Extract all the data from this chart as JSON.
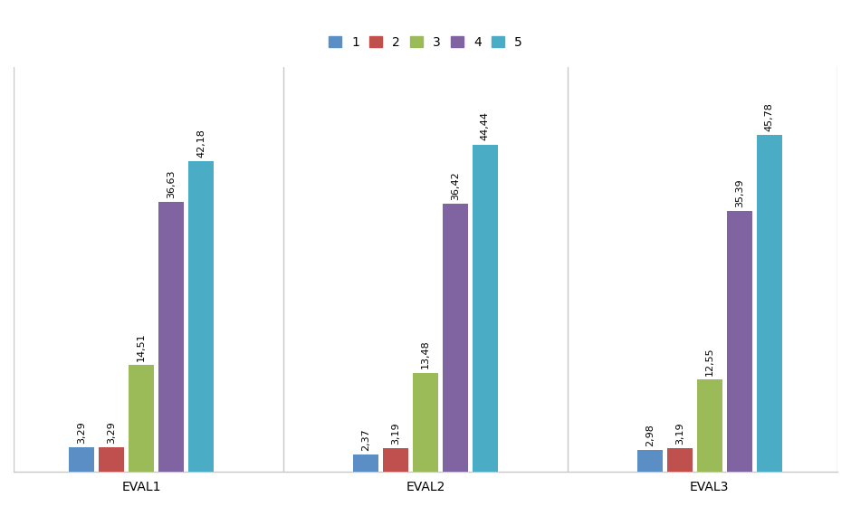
{
  "groups": [
    "EVAL1",
    "EVAL2",
    "EVAL3"
  ],
  "series_labels": [
    "1",
    "2",
    "3",
    "4",
    "5"
  ],
  "values": [
    [
      3.29,
      3.29,
      14.51,
      36.63,
      42.18
    ],
    [
      2.37,
      3.19,
      13.48,
      36.42,
      44.44
    ],
    [
      2.98,
      3.19,
      12.55,
      35.39,
      45.78
    ]
  ],
  "colors": [
    "#5b8ec4",
    "#c0504d",
    "#9bbb59",
    "#8064a2",
    "#4bacc6"
  ],
  "ylim": [
    0,
    55
  ],
  "bar_width": 0.09,
  "bar_gap": 0.015,
  "legend_fontsize": 10,
  "tick_fontsize": 10,
  "value_fontsize": 8.0,
  "background_color": "#ffffff",
  "divider_color": "#c8c8c8",
  "bottom_spine_color": "#c8c8c8"
}
